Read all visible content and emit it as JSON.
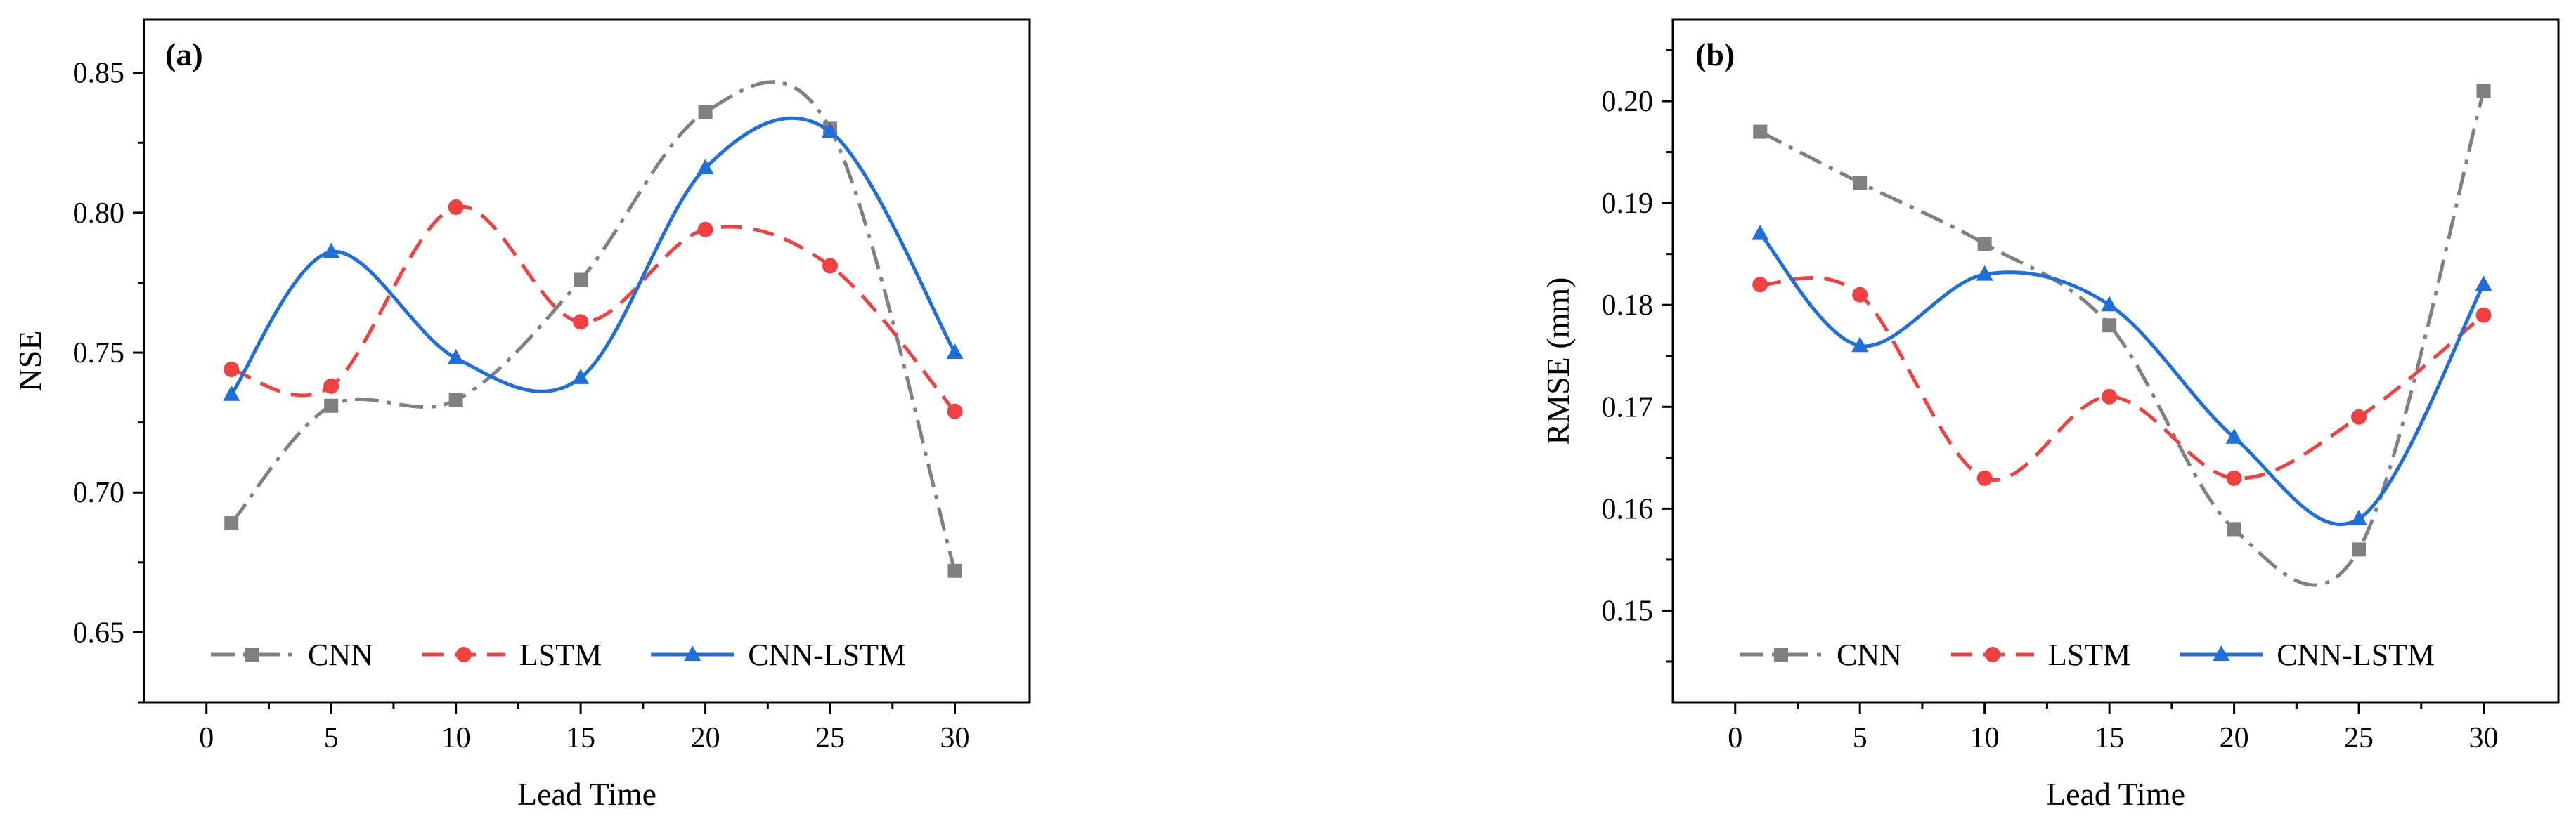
{
  "figure": {
    "panels": [
      {
        "tag": "(a)",
        "xlabel": "Lead Time",
        "ylabel": "NSE"
      },
      {
        "tag": "(b)",
        "xlabel": "Lead Time",
        "ylabel": "RMSE (mm)"
      }
    ]
  },
  "chart_data": [
    {
      "type": "line",
      "panel": "(a)",
      "title": "",
      "xlabel": "Lead Time",
      "ylabel": "NSE",
      "x": [
        1,
        5,
        10,
        15,
        20,
        25,
        30
      ],
      "xticks": [
        0,
        5,
        10,
        15,
        20,
        25,
        30
      ],
      "xlim": [
        -2.5,
        33
      ],
      "yticks": [
        0.65,
        0.7,
        0.75,
        0.8,
        0.85
      ],
      "ytick_labels": [
        "0.65",
        "0.70",
        "0.75",
        "0.80",
        "0.85"
      ],
      "ylim": [
        0.625,
        0.869
      ],
      "grid": false,
      "legend_position": "bottom",
      "series": [
        {
          "name": "CNN",
          "color": "#808080",
          "dash": "dash-dot",
          "marker": "square",
          "values": [
            0.689,
            0.731,
            0.733,
            0.776,
            0.836,
            0.83,
            0.672
          ]
        },
        {
          "name": "LSTM",
          "color": "#f04040",
          "dash": "dashed",
          "marker": "circle",
          "values": [
            0.744,
            0.738,
            0.802,
            0.761,
            0.794,
            0.781,
            0.729
          ]
        },
        {
          "name": "CNN-LSTM",
          "color": "#1f6fdb",
          "dash": "solid",
          "marker": "triangle",
          "values": [
            0.735,
            0.786,
            0.748,
            0.741,
            0.816,
            0.829,
            0.75
          ]
        }
      ]
    },
    {
      "type": "line",
      "panel": "(b)",
      "title": "",
      "xlabel": "Lead Time",
      "ylabel": "RMSE (mm)",
      "x": [
        1,
        5,
        10,
        15,
        20,
        25,
        30
      ],
      "xticks": [
        0,
        5,
        10,
        15,
        20,
        25,
        30
      ],
      "xlim": [
        -2.5,
        33
      ],
      "yticks": [
        0.15,
        0.16,
        0.17,
        0.18,
        0.19,
        0.2
      ],
      "ytick_labels": [
        "0.15",
        "0.16",
        "0.17",
        "0.18",
        "0.19",
        "0.20"
      ],
      "ylim": [
        0.141,
        0.208
      ],
      "grid": false,
      "legend_position": "bottom",
      "series": [
        {
          "name": "CNN",
          "color": "#808080",
          "dash": "dash-dot",
          "marker": "square",
          "values": [
            0.197,
            0.192,
            0.186,
            0.178,
            0.158,
            0.156,
            0.201
          ]
        },
        {
          "name": "LSTM",
          "color": "#f04040",
          "dash": "dashed",
          "marker": "circle",
          "values": [
            0.182,
            0.181,
            0.163,
            0.171,
            0.163,
            0.169,
            0.179
          ]
        },
        {
          "name": "CNN-LSTM",
          "color": "#1f6fdb",
          "dash": "solid",
          "marker": "triangle",
          "values": [
            0.187,
            0.176,
            0.183,
            0.18,
            0.167,
            0.159,
            0.182
          ]
        }
      ]
    }
  ]
}
